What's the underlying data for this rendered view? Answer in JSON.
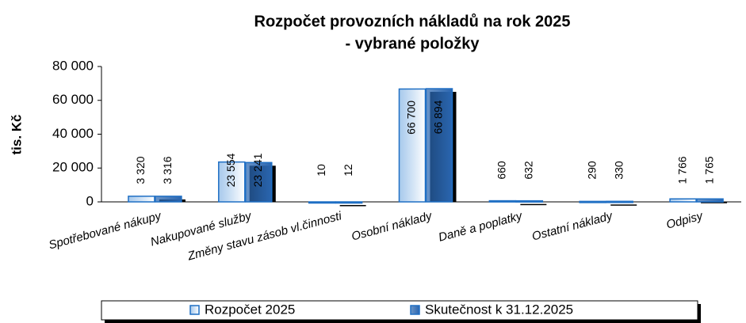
{
  "chart_data": {
    "type": "bar",
    "title": [
      "Rozpočet provozních nákladů na rok 2025",
      "- vybrané položky"
    ],
    "y_label": "tis. Kč",
    "categories": [
      "Spotřebované nákupy",
      "Nakupované služby",
      "Změny stavu zásob vl.činnosti",
      "Osobní náklady",
      "Daně a poplatky",
      "Ostatní náklady",
      "Odpisy"
    ],
    "series": [
      {
        "name": "Rozpočet 2025",
        "color": "#9dc3ea",
        "values": [
          3320,
          23554,
          10,
          66700,
          660,
          290,
          1766
        ],
        "value_labels": [
          "3 320",
          "23 554",
          "10",
          "66 700",
          "660",
          "290",
          "1 766"
        ]
      },
      {
        "name": "Skutečnost k 31.12.2025",
        "color": "#2a66b0",
        "values": [
          3316,
          23241,
          12,
          66894,
          632,
          330,
          1765
        ],
        "value_labels": [
          "3 316",
          "23 241",
          "12",
          "66 894",
          "632",
          "330",
          "1 765"
        ]
      }
    ],
    "ylim": [
      0,
      80000
    ],
    "yticks": [
      0,
      {
        "value": 20000,
        "label": "20 000"
      },
      {
        "value": 40000,
        "label": "40 000"
      },
      {
        "value": 60000,
        "label": "60 000"
      },
      {
        "value": 80000,
        "label": "80 000"
      }
    ],
    "grid": false
  }
}
